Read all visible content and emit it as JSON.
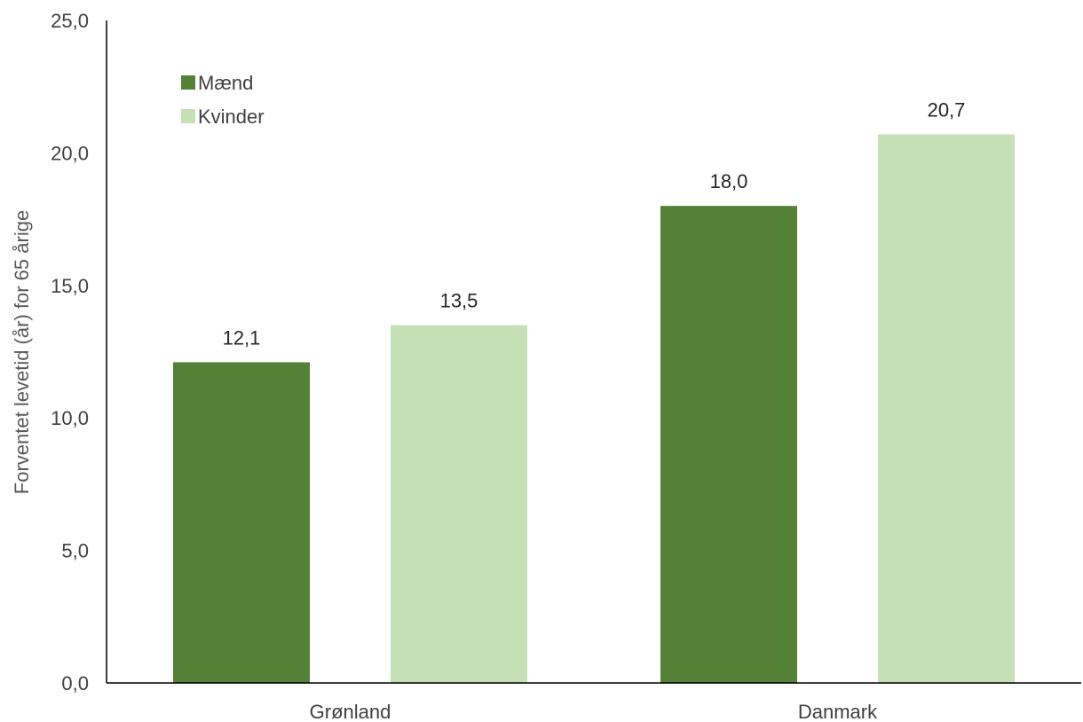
{
  "chart_data": {
    "type": "bar",
    "categories": [
      "Grønland",
      "Danmark"
    ],
    "series": [
      {
        "name": "Mænd",
        "values": [
          12.1,
          18.0
        ],
        "labels": [
          "12,1",
          "18,0"
        ],
        "color": "#538135"
      },
      {
        "name": "Kvinder",
        "values": [
          13.5,
          20.7
        ],
        "labels": [
          "13,5",
          "20,7"
        ],
        "color": "#c5e0b4"
      }
    ],
    "ylabel": "Forventet levetid (år) for 65 årige",
    "xlabel": "",
    "ylim": [
      0,
      25
    ],
    "yticks": [
      0,
      5,
      10,
      15,
      20,
      25
    ],
    "ytick_labels": [
      "0,0",
      "5,0",
      "10,0",
      "15,0",
      "20,0",
      "25,0"
    ],
    "grid": false,
    "legend_position": "top-left",
    "axis_color": "#000000"
  }
}
